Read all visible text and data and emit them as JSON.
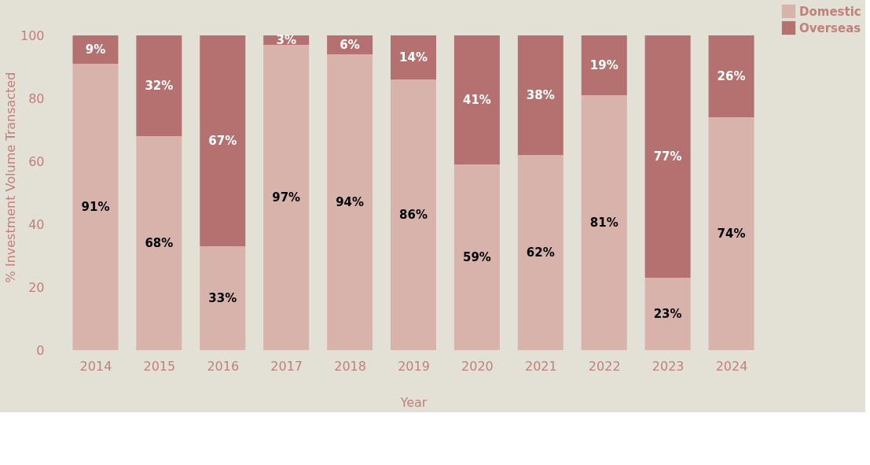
{
  "chart_data": {
    "type": "bar",
    "stacked": true,
    "xlabel": "Year",
    "ylabel": "% Investment Volume Transacted",
    "categories": [
      "2014",
      "2015",
      "2016",
      "2017",
      "2018",
      "2019",
      "2020",
      "2021",
      "2022",
      "2023",
      "2024"
    ],
    "series": [
      {
        "name": "Domestic",
        "color": "#d7b3ab",
        "values": [
          91,
          68,
          33,
          97,
          94,
          86,
          59,
          62,
          81,
          23,
          74
        ],
        "value_labels": [
          "91%",
          "68%",
          "33%",
          "97%",
          "94%",
          "86%",
          "59%",
          "62%",
          "81%",
          "23%",
          "74%"
        ]
      },
      {
        "name": "Overseas",
        "color": "#b4716f",
        "values": [
          9,
          32,
          67,
          3,
          6,
          14,
          41,
          38,
          19,
          77,
          26
        ],
        "value_labels": [
          "9%",
          "32%",
          "67%",
          "3%",
          "6%",
          "14%",
          "41%",
          "38%",
          "19%",
          "77%",
          "26%"
        ]
      }
    ],
    "ylim": [
      0,
      110
    ],
    "yticks": [
      0,
      20,
      40,
      60,
      80,
      100
    ],
    "grid": false,
    "legend": "right"
  }
}
